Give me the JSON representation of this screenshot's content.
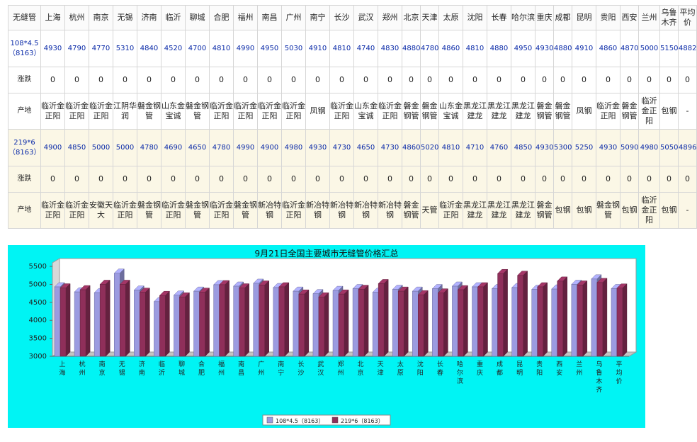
{
  "table": {
    "header_label": "无缝管",
    "cities": [
      "上海",
      "杭州",
      "南京",
      "无锡",
      "济南",
      "临沂",
      "聊城",
      "合肥",
      "福州",
      "南昌",
      "广州",
      "南宁",
      "长沙",
      "武汉",
      "郑州",
      "北京",
      "天津",
      "太原",
      "沈阳",
      "长春",
      "哈尔滨",
      "重庆",
      "成都",
      "昆明",
      "贵阳",
      "西安",
      "兰州",
      "乌鲁木齐",
      "平均价"
    ],
    "groups": [
      {
        "spec": "108*4.5（8163）",
        "prices": [
          "4930",
          "4790",
          "4770",
          "5310",
          "4840",
          "4520",
          "4700",
          "4810",
          "4990",
          "4950",
          "5030",
          "4910",
          "4810",
          "4740",
          "4830",
          "4880",
          "4780",
          "4860",
          "4810",
          "4880",
          "4950",
          "4930",
          "4880",
          "4910",
          "4860",
          "4870",
          "5000",
          "5150",
          "4882"
        ],
        "change_label": "涨跌",
        "changes": [
          "0",
          "0",
          "0",
          "0",
          "0",
          "0",
          "0",
          "0",
          "0",
          "0",
          "0",
          "0",
          "0",
          "0",
          "0",
          "0",
          "0",
          "0",
          "0",
          "0",
          "0",
          "0",
          "0",
          "0",
          "0",
          "0",
          "0",
          "0",
          "0"
        ],
        "origin_label": "产地",
        "origins": [
          "临沂金正阳",
          "临沂金正阳",
          "临沂金正阳",
          "江阴华润",
          "磐金钢管",
          "山东金宝诚",
          "磐金钢管",
          "临沂金正阳",
          "临沂金正阳",
          "临沂金正阳",
          "临沂金正阳",
          "凤钢",
          "临沂金正阳",
          "山东金宝诚",
          "临沂金正阳",
          "磐金钢管",
          "磐金钢管",
          "山东金宝诚",
          "黑龙江建龙",
          "黑龙江建龙",
          "黑龙江建龙",
          "磐金钢管",
          "磐金钢管",
          "凤钢",
          "临沂金正阳",
          "磐金钢管",
          "临沂金正阳",
          "包钢",
          "-"
        ]
      },
      {
        "spec": "219*6（8163）",
        "prices": [
          "4900",
          "4850",
          "5000",
          "5000",
          "4780",
          "4690",
          "4650",
          "4780",
          "4990",
          "4900",
          "4980",
          "4930",
          "4730",
          "4650",
          "4730",
          "4860",
          "5020",
          "4810",
          "4710",
          "4760",
          "4850",
          "4930",
          "5300",
          "5250",
          "4930",
          "5090",
          "4980",
          "5050",
          "4896"
        ],
        "change_label": "涨跌",
        "changes": [
          "0",
          "0",
          "0",
          "0",
          "0",
          "0",
          "0",
          "0",
          "0",
          "0",
          "0",
          "0",
          "0",
          "0",
          "0",
          "0",
          "0",
          "0",
          "0",
          "0",
          "0",
          "0",
          "0",
          "0",
          "0",
          "0",
          "0",
          "0",
          "0"
        ],
        "origin_label": "产地",
        "origins": [
          "临沂金正阳",
          "临沂金正阳",
          "安徽天大",
          "临沂金正阳",
          "磐金钢管",
          "临沂金正阳",
          "磐金钢管",
          "临沂金正阳",
          "磐金钢管",
          "新冶特钢",
          "临沂金正阳",
          "新冶特钢",
          "新冶特钢",
          "新冶特钢",
          "新冶特钢",
          "磐金钢管",
          "天管",
          "临沂金正阳",
          "黑龙江建龙",
          "黑龙江建龙",
          "黑龙江建龙",
          "磐金钢管",
          "包钢",
          "包钢",
          "磐金钢管",
          "包钢",
          "临沂金正阳",
          "包钢",
          "-"
        ]
      }
    ]
  },
  "chart_data": {
    "type": "bar",
    "title": "9月21日全国主要城市无缝管价格汇总",
    "categories": [
      "上海",
      "杭州",
      "南京",
      "无锡",
      "济南",
      "临沂",
      "聊城",
      "合肥",
      "福州",
      "南昌",
      "广州",
      "南宁",
      "长沙",
      "武汉",
      "郑州",
      "北京",
      "天津",
      "太原",
      "沈阳",
      "长春",
      "哈尔滨",
      "重庆",
      "成都",
      "昆明",
      "贵阳",
      "西安",
      "兰州",
      "乌鲁木齐",
      "平均价"
    ],
    "series": [
      {
        "name": "108*4.5（8163）",
        "color": "#9b9be0",
        "values": [
          4930,
          4790,
          4770,
          5310,
          4840,
          4520,
          4700,
          4810,
          4990,
          4950,
          5030,
          4910,
          4810,
          4740,
          4830,
          4880,
          4780,
          4860,
          4810,
          4880,
          4950,
          4930,
          4880,
          4910,
          4860,
          4870,
          5000,
          5150,
          4882
        ]
      },
      {
        "name": "219*6（8163）",
        "color": "#8f2f5a",
        "values": [
          4900,
          4850,
          5000,
          5000,
          4780,
          4690,
          4650,
          4780,
          4990,
          4900,
          4980,
          4930,
          4730,
          4650,
          4730,
          4860,
          5020,
          4810,
          4710,
          4760,
          4850,
          4930,
          5300,
          5250,
          4930,
          5090,
          4980,
          5050,
          4896
        ]
      }
    ],
    "yticks": [
      "3000",
      "3500",
      "4000",
      "4500",
      "5000",
      "5500"
    ],
    "ylim": [
      3000,
      5600
    ],
    "grid": false,
    "legend": "bottom-center",
    "background": "#00f4f4"
  }
}
